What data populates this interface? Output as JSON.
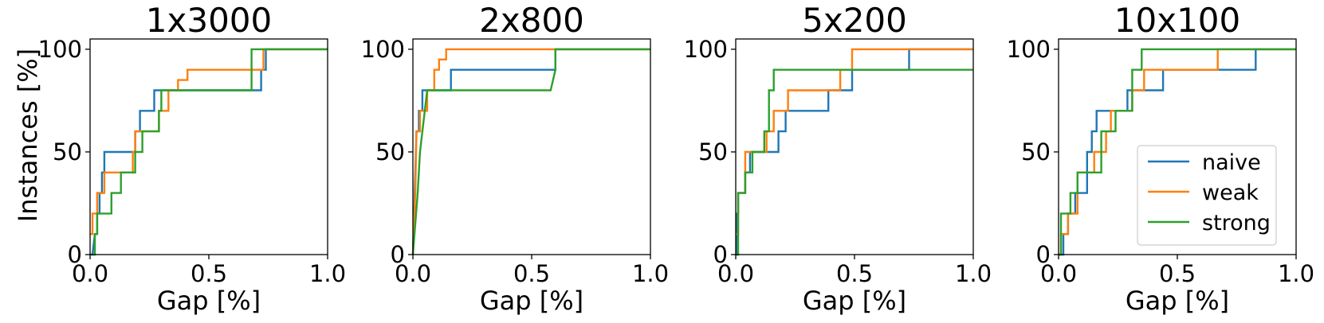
{
  "figure": {
    "ylabel": "Instances [%]"
  },
  "colors": {
    "naive": "#1f77b4",
    "weak": "#ff7f0e",
    "strong": "#2ca02c"
  },
  "legend": {
    "placement": "lower-right",
    "panel": 3,
    "entries": [
      "naive",
      "weak",
      "strong"
    ]
  },
  "chart_data": [
    {
      "type": "line",
      "title": "1x3000",
      "xlabel": "Gap [%]",
      "ylabel": "Instances [%]",
      "xlim": [
        0,
        1.0
      ],
      "ylim": [
        0,
        105
      ],
      "xticks": [
        "0.0",
        "0.5",
        "1.0"
      ],
      "yticks": [
        "0",
        "50",
        "100"
      ],
      "series": [
        {
          "name": "naive",
          "points": [
            [
              0,
              0
            ],
            [
              0.01,
              0
            ],
            [
              0.02,
              10
            ],
            [
              0.03,
              10
            ],
            [
              0.03,
              20
            ],
            [
              0.04,
              20
            ],
            [
              0.04,
              30
            ],
            [
              0.05,
              30
            ],
            [
              0.05,
              40
            ],
            [
              0.06,
              40
            ],
            [
              0.06,
              50
            ],
            [
              0.19,
              50
            ],
            [
              0.19,
              60
            ],
            [
              0.21,
              60
            ],
            [
              0.21,
              70
            ],
            [
              0.27,
              70
            ],
            [
              0.27,
              80
            ],
            [
              0.72,
              80
            ],
            [
              0.72,
              90
            ],
            [
              0.74,
              90
            ],
            [
              0.74,
              100
            ],
            [
              1.0,
              100
            ]
          ]
        },
        {
          "name": "weak",
          "points": [
            [
              0,
              10
            ],
            [
              0.01,
              10
            ],
            [
              0.01,
              20
            ],
            [
              0.03,
              20
            ],
            [
              0.03,
              30
            ],
            [
              0.06,
              30
            ],
            [
              0.06,
              40
            ],
            [
              0.18,
              40
            ],
            [
              0.18,
              50
            ],
            [
              0.19,
              50
            ],
            [
              0.19,
              60
            ],
            [
              0.29,
              60
            ],
            [
              0.29,
              70
            ],
            [
              0.33,
              70
            ],
            [
              0.33,
              80
            ],
            [
              0.37,
              80
            ],
            [
              0.37,
              85
            ],
            [
              0.41,
              85
            ],
            [
              0.41,
              90
            ],
            [
              0.73,
              90
            ],
            [
              0.73,
              100
            ],
            [
              1.0,
              100
            ]
          ]
        },
        {
          "name": "strong",
          "points": [
            [
              0.01,
              0
            ],
            [
              0.02,
              0
            ],
            [
              0.02,
              10
            ],
            [
              0.03,
              10
            ],
            [
              0.03,
              20
            ],
            [
              0.09,
              20
            ],
            [
              0.09,
              30
            ],
            [
              0.13,
              30
            ],
            [
              0.13,
              40
            ],
            [
              0.19,
              40
            ],
            [
              0.19,
              50
            ],
            [
              0.22,
              50
            ],
            [
              0.22,
              60
            ],
            [
              0.29,
              60
            ],
            [
              0.29,
              70
            ],
            [
              0.3,
              70
            ],
            [
              0.3,
              80
            ],
            [
              0.68,
              80
            ],
            [
              0.68,
              100
            ],
            [
              1.0,
              100
            ]
          ]
        }
      ]
    },
    {
      "type": "line",
      "title": "2x800",
      "xlabel": "Gap [%]",
      "ylabel": "",
      "xlim": [
        0,
        1.0
      ],
      "ylim": [
        0,
        105
      ],
      "xticks": [
        "0.0",
        "0.5",
        "1.0"
      ],
      "yticks": [
        "0",
        "50",
        "100"
      ],
      "series": [
        {
          "name": "naive",
          "points": [
            [
              0,
              0
            ],
            [
              0.005,
              20
            ],
            [
              0.01,
              40
            ],
            [
              0.015,
              60
            ],
            [
              0.025,
              60
            ],
            [
              0.025,
              70
            ],
            [
              0.04,
              70
            ],
            [
              0.04,
              80
            ],
            [
              0.16,
              80
            ],
            [
              0.16,
              90
            ],
            [
              0.6,
              90
            ],
            [
              0.6,
              100
            ],
            [
              1.0,
              100
            ]
          ]
        },
        {
          "name": "weak",
          "points": [
            [
              0,
              0
            ],
            [
              0.01,
              30
            ],
            [
              0.015,
              60
            ],
            [
              0.03,
              60
            ],
            [
              0.03,
              70
            ],
            [
              0.06,
              70
            ],
            [
              0.06,
              80
            ],
            [
              0.09,
              80
            ],
            [
              0.09,
              90
            ],
            [
              0.11,
              90
            ],
            [
              0.11,
              95
            ],
            [
              0.14,
              95
            ],
            [
              0.14,
              100
            ],
            [
              1.0,
              100
            ]
          ]
        },
        {
          "name": "strong",
          "points": [
            [
              0,
              0
            ],
            [
              0.02,
              30
            ],
            [
              0.03,
              50
            ],
            [
              0.05,
              70
            ],
            [
              0.06,
              80
            ],
            [
              0.58,
              80
            ],
            [
              0.6,
              90
            ],
            [
              0.6,
              100
            ],
            [
              1.0,
              100
            ]
          ]
        }
      ]
    },
    {
      "type": "line",
      "title": "5x200",
      "xlabel": "Gap [%]",
      "ylabel": "",
      "xlim": [
        0,
        1.0
      ],
      "ylim": [
        0,
        105
      ],
      "xticks": [
        "0.0",
        "0.5",
        "1.0"
      ],
      "yticks": [
        "0",
        "50",
        "100"
      ],
      "series": [
        {
          "name": "naive",
          "points": [
            [
              0,
              0
            ],
            [
              0.005,
              0
            ],
            [
              0.005,
              20
            ],
            [
              0.01,
              20
            ],
            [
              0.01,
              30
            ],
            [
              0.04,
              30
            ],
            [
              0.04,
              40
            ],
            [
              0.06,
              40
            ],
            [
              0.06,
              50
            ],
            [
              0.18,
              50
            ],
            [
              0.18,
              60
            ],
            [
              0.21,
              60
            ],
            [
              0.21,
              70
            ],
            [
              0.39,
              70
            ],
            [
              0.39,
              80
            ],
            [
              0.49,
              80
            ],
            [
              0.49,
              90
            ],
            [
              0.73,
              90
            ],
            [
              0.73,
              100
            ],
            [
              1.0,
              100
            ]
          ]
        },
        {
          "name": "weak",
          "points": [
            [
              0,
              10
            ],
            [
              0.01,
              10
            ],
            [
              0.01,
              30
            ],
            [
              0.04,
              30
            ],
            [
              0.04,
              50
            ],
            [
              0.13,
              50
            ],
            [
              0.13,
              60
            ],
            [
              0.16,
              60
            ],
            [
              0.16,
              70
            ],
            [
              0.22,
              70
            ],
            [
              0.22,
              80
            ],
            [
              0.44,
              80
            ],
            [
              0.44,
              90
            ],
            [
              0.49,
              90
            ],
            [
              0.49,
              100
            ],
            [
              1.0,
              100
            ]
          ]
        },
        {
          "name": "strong",
          "points": [
            [
              0,
              0
            ],
            [
              0.01,
              0
            ],
            [
              0.01,
              30
            ],
            [
              0.04,
              30
            ],
            [
              0.04,
              40
            ],
            [
              0.07,
              40
            ],
            [
              0.07,
              50
            ],
            [
              0.12,
              50
            ],
            [
              0.12,
              60
            ],
            [
              0.14,
              60
            ],
            [
              0.14,
              80
            ],
            [
              0.16,
              80
            ],
            [
              0.16,
              90
            ],
            [
              1.0,
              90
            ]
          ]
        }
      ]
    },
    {
      "type": "line",
      "title": "10x100",
      "xlabel": "Gap [%]",
      "ylabel": "",
      "xlim": [
        0,
        1.0
      ],
      "ylim": [
        0,
        105
      ],
      "xticks": [
        "0.0",
        "0.5",
        "1.0"
      ],
      "yticks": [
        "0",
        "50",
        "100"
      ],
      "series": [
        {
          "name": "naive",
          "points": [
            [
              0,
              0
            ],
            [
              0.02,
              0
            ],
            [
              0.02,
              10
            ],
            [
              0.04,
              10
            ],
            [
              0.04,
              20
            ],
            [
              0.07,
              20
            ],
            [
              0.07,
              30
            ],
            [
              0.12,
              30
            ],
            [
              0.12,
              50
            ],
            [
              0.14,
              50
            ],
            [
              0.14,
              60
            ],
            [
              0.16,
              60
            ],
            [
              0.16,
              70
            ],
            [
              0.29,
              70
            ],
            [
              0.29,
              80
            ],
            [
              0.44,
              80
            ],
            [
              0.44,
              90
            ],
            [
              0.83,
              90
            ],
            [
              0.83,
              100
            ],
            [
              1.0,
              100
            ]
          ]
        },
        {
          "name": "weak",
          "points": [
            [
              0,
              0
            ],
            [
              0.01,
              0
            ],
            [
              0.01,
              10
            ],
            [
              0.04,
              10
            ],
            [
              0.04,
              20
            ],
            [
              0.08,
              20
            ],
            [
              0.08,
              40
            ],
            [
              0.15,
              40
            ],
            [
              0.15,
              50
            ],
            [
              0.2,
              50
            ],
            [
              0.2,
              60
            ],
            [
              0.22,
              60
            ],
            [
              0.22,
              70
            ],
            [
              0.31,
              70
            ],
            [
              0.31,
              80
            ],
            [
              0.36,
              80
            ],
            [
              0.36,
              90
            ],
            [
              0.67,
              90
            ],
            [
              0.67,
              100
            ],
            [
              1.0,
              100
            ]
          ]
        },
        {
          "name": "strong",
          "points": [
            [
              0,
              0
            ],
            [
              0.01,
              0
            ],
            [
              0.01,
              20
            ],
            [
              0.05,
              20
            ],
            [
              0.05,
              30
            ],
            [
              0.08,
              30
            ],
            [
              0.08,
              40
            ],
            [
              0.18,
              40
            ],
            [
              0.18,
              60
            ],
            [
              0.24,
              60
            ],
            [
              0.24,
              70
            ],
            [
              0.31,
              70
            ],
            [
              0.31,
              90
            ],
            [
              0.35,
              90
            ],
            [
              0.35,
              100
            ],
            [
              1.0,
              100
            ]
          ]
        }
      ]
    }
  ]
}
